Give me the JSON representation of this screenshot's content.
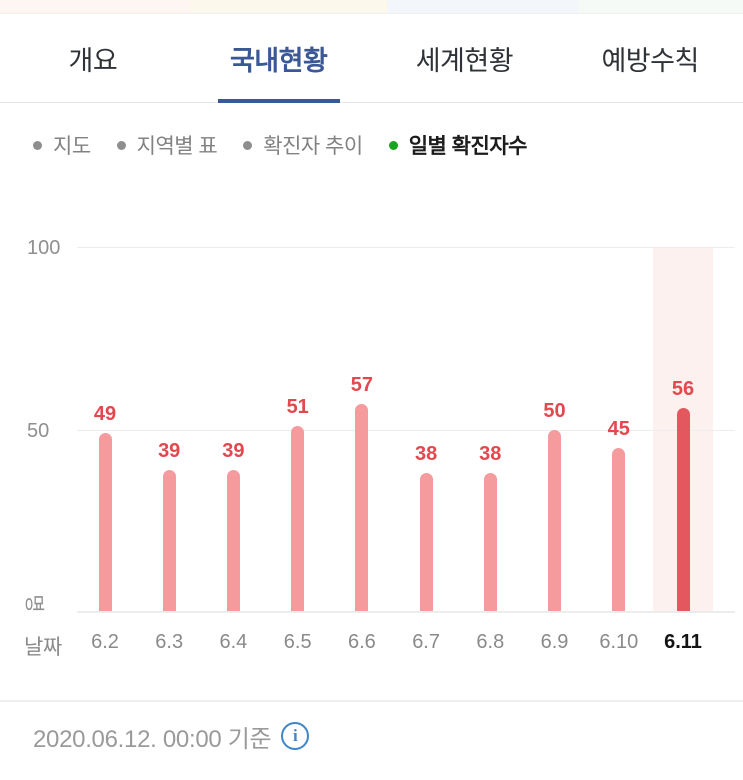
{
  "header_tabs": {
    "items": [
      {
        "label": "개요",
        "active": false
      },
      {
        "label": "국내현황",
        "active": true
      },
      {
        "label": "세계현황",
        "active": false
      },
      {
        "label": "예방수칙",
        "active": false
      }
    ]
  },
  "sub_nav": {
    "items": [
      {
        "label": "지도",
        "active": false
      },
      {
        "label": "지역별 표",
        "active": false
      },
      {
        "label": "확진자 추이",
        "active": false
      },
      {
        "label": "일별 확진자수",
        "active": true
      }
    ]
  },
  "chart_data": {
    "type": "bar",
    "title": "일별 확진자수",
    "categories": [
      "6.2",
      "6.3",
      "6.4",
      "6.5",
      "6.6",
      "6.7",
      "6.8",
      "6.9",
      "6.10",
      "6.11"
    ],
    "values": [
      49,
      39,
      39,
      51,
      57,
      38,
      38,
      50,
      45,
      56
    ],
    "xlabel": "날짜",
    "ylabel_unit": "명",
    "y_ticks": [
      100,
      50
    ],
    "ylim": [
      0,
      100
    ],
    "grid": "horizontal",
    "legend": "none",
    "highlight_index": 9,
    "colors": {
      "bar": "#f59b9e",
      "bar_highlight": "#e3585e",
      "value_label": "#e2484e",
      "highlight_band": "#fcf1ee",
      "gridline": "#ededed",
      "axis_text": "#8a8a8a",
      "active_tick_text": "#141414"
    }
  },
  "footer": {
    "as_of_text": "2020.06.12. 00:00 기준"
  },
  "icons": {
    "info": "i"
  },
  "theme": {
    "active_tab_color": "#3a5796",
    "tab_text_color": "#2f3338",
    "active_bullet_color": "#19a51e",
    "inactive_bullet_color": "#8e8e8e",
    "info_icon_color": "#3e86c8"
  }
}
